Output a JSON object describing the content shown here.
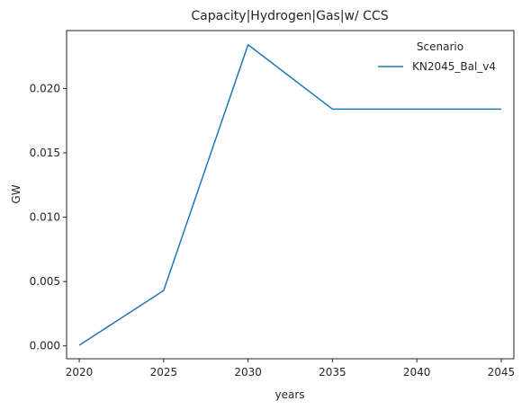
{
  "chart_data": {
    "type": "line",
    "title": "Capacity|Hydrogen|Gas|w/ CCS",
    "xlabel": "years",
    "ylabel": "GW",
    "x": [
      2020,
      2025,
      2030,
      2035,
      2040,
      2045
    ],
    "x_ticks": [
      "2020",
      "2025",
      "2030",
      "2035",
      "2040",
      "2045"
    ],
    "y_ticks": [
      "0.000",
      "0.005",
      "0.010",
      "0.015",
      "0.020"
    ],
    "xlim": [
      2019.25,
      2045.75
    ],
    "ylim": [
      -0.001,
      0.0245
    ],
    "grid": false,
    "legend": {
      "title": "Scenario",
      "placement": "top-right"
    },
    "series": [
      {
        "name": "KN2045_Bal_v4",
        "color": "#1f77b4",
        "values": [
          5e-05,
          0.0043,
          0.0234,
          0.0184,
          0.0184,
          0.0184
        ]
      }
    ]
  }
}
